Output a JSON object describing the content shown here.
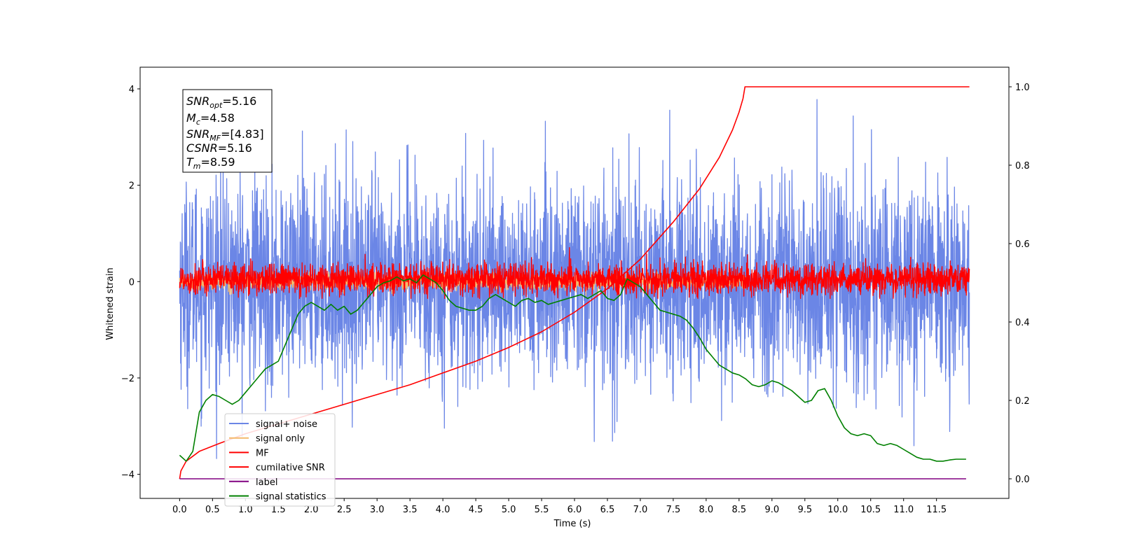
{
  "chart_data": {
    "type": "line",
    "xlabel": "Time (s)",
    "ylabel": "Whitened strain",
    "xlim": [
      -0.6,
      12.6
    ],
    "ylim": [
      -4.5,
      4.45
    ],
    "y2lim": [
      -0.05,
      1.05
    ],
    "xticks": [
      "0.0",
      "0.5",
      "1.0",
      "1.5",
      "2.0",
      "2.5",
      "3.0",
      "3.5",
      "4.0",
      "4.5",
      "5.0",
      "5.5",
      "6.0",
      "6.5",
      "7.0",
      "7.5",
      "8.0",
      "8.5",
      "9.0",
      "9.5",
      "10.0",
      "10.5",
      "11.0",
      "11.5"
    ],
    "yticks": [
      "4",
      "2",
      "0",
      "−2",
      "−4"
    ],
    "y2ticks": [
      "1.0",
      "0.8",
      "0.6",
      "0.4",
      "0.2",
      "0.0"
    ],
    "grid": false,
    "legend_position": "lower-left",
    "annotation": {
      "snr_opt": "5.16",
      "mc": "4.58",
      "snr_mf": "[4.83]",
      "csnr": "5.16",
      "tm": "8.59"
    },
    "series": [
      {
        "name": "signal+ noise",
        "color": "#6b86e6",
        "axis": "left",
        "kind": "noise",
        "t_start": 0.0,
        "t_end": 12.0,
        "mean": 0.0,
        "std": 1.05,
        "max": 4.05,
        "min": -4.15
      },
      {
        "name": "signal only",
        "color": "#f4b96b",
        "axis": "left",
        "kind": "noise",
        "t_start": 0.0,
        "t_end": 8.6,
        "mean": 0.0,
        "std": 0.08,
        "max": 0.2,
        "min": -0.55
      },
      {
        "name": "MF",
        "color": "#ff0000",
        "axis": "left",
        "kind": "noise",
        "t_start": 0.0,
        "t_end": 12.0,
        "mean": 0.05,
        "std": 0.16,
        "max": 1.0,
        "min": -0.35
      },
      {
        "name": "cumilative SNR",
        "color": "#ff0000",
        "axis": "right",
        "kind": "line",
        "x": [
          0.0,
          0.02,
          0.1,
          0.3,
          0.6,
          1.0,
          1.5,
          2.0,
          2.5,
          3.0,
          3.5,
          4.0,
          4.5,
          5.0,
          5.5,
          6.0,
          6.5,
          7.0,
          7.5,
          7.9,
          8.2,
          8.4,
          8.5,
          8.56,
          8.59,
          9.0,
          10.0,
          11.0,
          12.0
        ],
        "y": [
          0.0,
          0.02,
          0.045,
          0.07,
          0.09,
          0.115,
          0.14,
          0.165,
          0.19,
          0.215,
          0.24,
          0.27,
          0.3,
          0.335,
          0.375,
          0.425,
          0.485,
          0.56,
          0.655,
          0.74,
          0.82,
          0.89,
          0.935,
          0.97,
          1.0,
          1.0,
          1.0,
          1.0,
          1.0
        ]
      },
      {
        "name": "label",
        "color": "#800080",
        "axis": "right",
        "kind": "line",
        "x": [
          0.0,
          11.95
        ],
        "y": [
          0.0,
          0.0
        ]
      },
      {
        "name": "signal statistics",
        "color": "#008000",
        "axis": "right",
        "kind": "line",
        "x": [
          0.0,
          0.1,
          0.2,
          0.3,
          0.4,
          0.5,
          0.6,
          0.7,
          0.8,
          0.9,
          1.0,
          1.1,
          1.2,
          1.3,
          1.4,
          1.5,
          1.6,
          1.7,
          1.8,
          1.9,
          2.0,
          2.1,
          2.2,
          2.3,
          2.4,
          2.5,
          2.6,
          2.7,
          2.8,
          2.9,
          3.0,
          3.1,
          3.2,
          3.3,
          3.4,
          3.5,
          3.6,
          3.7,
          3.8,
          3.9,
          4.0,
          4.1,
          4.2,
          4.3,
          4.4,
          4.5,
          4.6,
          4.7,
          4.8,
          4.9,
          5.0,
          5.1,
          5.2,
          5.3,
          5.4,
          5.5,
          5.6,
          5.7,
          5.8,
          5.9,
          6.0,
          6.1,
          6.2,
          6.3,
          6.4,
          6.5,
          6.6,
          6.7,
          6.8,
          6.9,
          7.0,
          7.1,
          7.2,
          7.3,
          7.4,
          7.5,
          7.6,
          7.7,
          7.8,
          7.9,
          8.0,
          8.1,
          8.2,
          8.3,
          8.4,
          8.5,
          8.6,
          8.7,
          8.8,
          8.9,
          9.0,
          9.1,
          9.2,
          9.3,
          9.4,
          9.5,
          9.6,
          9.7,
          9.8,
          9.9,
          10.0,
          10.1,
          10.2,
          10.3,
          10.4,
          10.5,
          10.6,
          10.7,
          10.8,
          10.9,
          11.0,
          11.1,
          11.2,
          11.3,
          11.4,
          11.5,
          11.6,
          11.7,
          11.8,
          11.9,
          11.95
        ],
        "y": [
          0.06,
          0.045,
          0.07,
          0.17,
          0.2,
          0.215,
          0.21,
          0.2,
          0.19,
          0.2,
          0.22,
          0.24,
          0.26,
          0.28,
          0.29,
          0.3,
          0.34,
          0.38,
          0.42,
          0.44,
          0.45,
          0.44,
          0.43,
          0.445,
          0.43,
          0.44,
          0.42,
          0.43,
          0.45,
          0.47,
          0.49,
          0.5,
          0.505,
          0.515,
          0.505,
          0.51,
          0.5,
          0.52,
          0.51,
          0.5,
          0.48,
          0.455,
          0.44,
          0.435,
          0.43,
          0.43,
          0.44,
          0.46,
          0.47,
          0.46,
          0.45,
          0.44,
          0.455,
          0.46,
          0.45,
          0.455,
          0.445,
          0.45,
          0.455,
          0.46,
          0.465,
          0.47,
          0.46,
          0.47,
          0.48,
          0.46,
          0.455,
          0.47,
          0.51,
          0.5,
          0.49,
          0.47,
          0.45,
          0.43,
          0.425,
          0.42,
          0.415,
          0.405,
          0.385,
          0.36,
          0.33,
          0.31,
          0.29,
          0.28,
          0.27,
          0.265,
          0.255,
          0.24,
          0.235,
          0.24,
          0.25,
          0.245,
          0.235,
          0.225,
          0.21,
          0.195,
          0.2,
          0.225,
          0.23,
          0.2,
          0.16,
          0.13,
          0.115,
          0.11,
          0.115,
          0.11,
          0.09,
          0.085,
          0.09,
          0.085,
          0.075,
          0.065,
          0.055,
          0.05,
          0.05,
          0.045,
          0.045,
          0.048,
          0.05,
          0.05,
          0.05
        ]
      }
    ]
  }
}
